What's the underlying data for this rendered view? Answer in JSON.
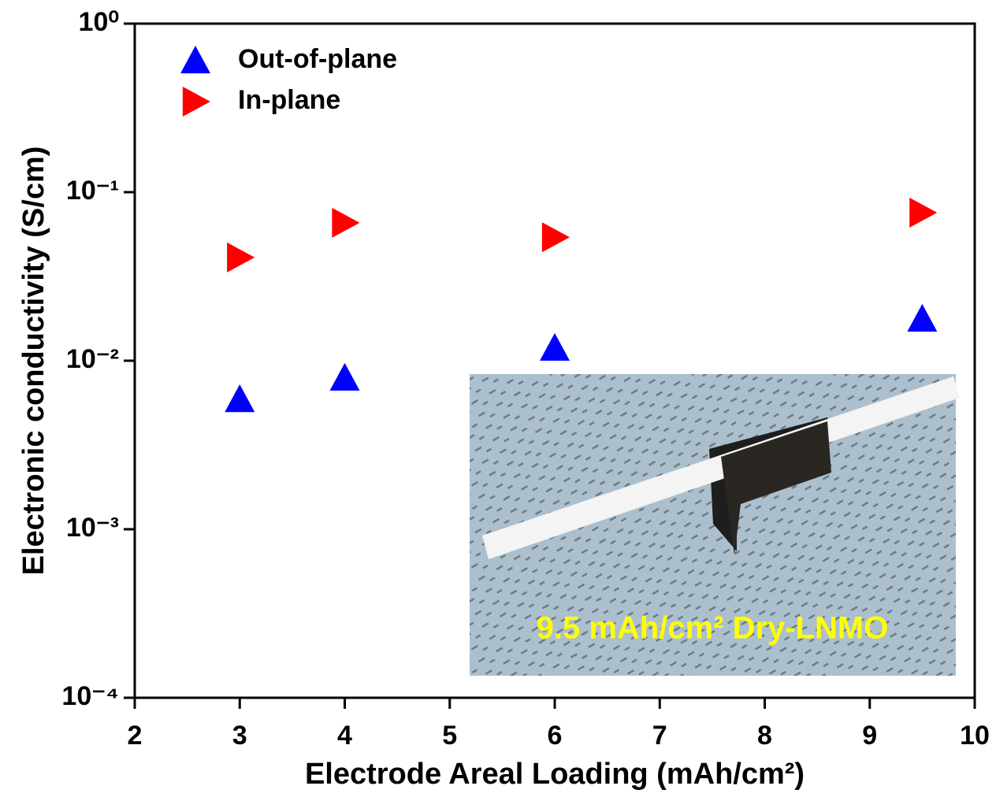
{
  "chart_data": {
    "type": "scatter",
    "x_label": "Electrode Areal Loading (mAh/cm²)",
    "y_label": "Electronic conductivity (S/cm)",
    "xlim": [
      2,
      10
    ],
    "xticks": [
      2,
      3,
      4,
      5,
      6,
      7,
      8,
      9,
      10
    ],
    "ylim": [
      0.0001,
      1
    ],
    "y_scale": "log",
    "yticks": [
      {
        "value": 0.0001,
        "label": "10⁻⁴"
      },
      {
        "value": 0.001,
        "label": "10⁻³"
      },
      {
        "value": 0.01,
        "label": "10⁻²"
      },
      {
        "value": 0.1,
        "label": "10⁻¹"
      },
      {
        "value": 1,
        "label": "10⁰"
      }
    ],
    "legend": "upper left",
    "series": [
      {
        "name": "Out-of-plane",
        "color": "#0000ff",
        "marker": "triangle-up",
        "x": [
          3,
          4,
          6,
          9.5
        ],
        "values": [
          0.0059,
          0.0079,
          0.0119,
          0.0177
        ]
      },
      {
        "name": "In-plane",
        "color": "#ff0000",
        "marker": "triangle-right",
        "x": [
          3,
          4,
          6,
          9.5
        ],
        "values": [
          0.041,
          0.0658,
          0.054,
          0.0756
        ]
      }
    ],
    "annotation": "9.5 mAh/cm² Dry-LNMO"
  }
}
